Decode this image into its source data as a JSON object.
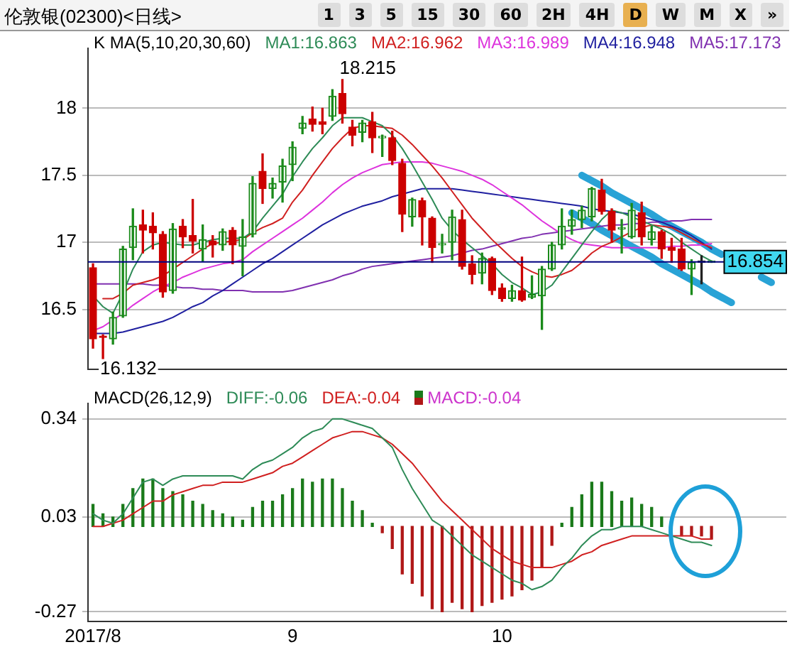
{
  "chart_data": [
    {
      "type": "candlestick",
      "title": "伦敦银(02300)<日线>",
      "annotations": [
        "1",
        "3",
        "5",
        "15",
        "30",
        "60",
        "2H",
        "4H",
        "D",
        "W",
        "M",
        "X",
        "»"
      ],
      "value_labels": [
        null,
        "16.132",
        null,
        null,
        null,
        null,
        null,
        null,
        null,
        null,
        null,
        null,
        null,
        null,
        null,
        null,
        null,
        null,
        null,
        null,
        null,
        null,
        null,
        null,
        null,
        "18.215",
        null,
        null,
        null,
        null,
        null,
        null,
        null,
        null,
        null,
        null,
        null,
        null,
        null,
        null,
        null,
        null,
        null,
        null,
        null,
        null,
        null,
        null,
        null,
        null,
        null,
        null,
        null,
        null,
        null,
        null,
        null,
        null,
        null,
        null,
        null,
        null,
        null,
        null,
        null,
        null,
        null,
        null,
        null,
        null
      ],
      "legend_title": "K  MA(5,10,20,30,60)",
      "legend": "top",
      "grid": "y",
      "tick_labels": "y",
      "categories": [
        "2017/8",
        null,
        null,
        null,
        null,
        null,
        null,
        null,
        null,
        null,
        null,
        null,
        null,
        null,
        null,
        null,
        null,
        null,
        null,
        null,
        "9",
        null,
        null,
        null,
        null,
        null,
        null,
        null,
        null,
        null,
        null,
        null,
        null,
        null,
        null,
        null,
        null,
        null,
        null,
        null,
        null,
        "10",
        null,
        null,
        null,
        null,
        null,
        null,
        null,
        null,
        null,
        null,
        null,
        null,
        null,
        null,
        null,
        null,
        null,
        null,
        null,
        null,
        null,
        null,
        null,
        null,
        null,
        null,
        null,
        null
      ],
      "ylim": [
        16.05,
        18.45
      ],
      "yticks": [
        16.5,
        17,
        17.5,
        18
      ],
      "ohlc": [
        [
          16.81,
          16.84,
          16.21,
          16.28
        ],
        [
          16.3,
          16.31,
          16.132,
          16.29
        ],
        [
          16.28,
          16.48,
          16.24,
          16.44
        ],
        [
          16.45,
          16.97,
          16.44,
          16.95
        ],
        [
          16.96,
          17.25,
          16.87,
          17.12
        ],
        [
          17.13,
          17.24,
          16.92,
          17.09
        ],
        [
          17.12,
          17.22,
          16.95,
          17.07
        ],
        [
          17.06,
          17.08,
          16.59,
          16.63
        ],
        [
          16.64,
          17.14,
          16.62,
          17.1
        ],
        [
          17.12,
          17.17,
          16.96,
          17.04
        ],
        [
          17.05,
          17.32,
          16.92,
          17.01
        ],
        [
          16.95,
          17.13,
          16.86,
          17.02
        ],
        [
          17.01,
          17.05,
          16.89,
          16.98
        ],
        [
          16.98,
          17.1,
          16.94,
          17.08
        ],
        [
          17.09,
          17.11,
          16.84,
          16.98
        ],
        [
          16.97,
          17.17,
          16.75,
          17.04
        ],
        [
          17.06,
          17.49,
          17.04,
          17.44
        ],
        [
          17.53,
          17.66,
          17.29,
          17.4
        ],
        [
          17.4,
          17.48,
          17.33,
          17.44
        ],
        [
          17.45,
          17.62,
          17.3,
          17.57
        ],
        [
          17.58,
          17.75,
          17.46,
          17.71
        ],
        [
          17.85,
          17.94,
          17.81,
          17.89
        ],
        [
          17.92,
          18.01,
          17.83,
          17.88
        ],
        [
          17.9,
          18.0,
          17.81,
          17.88
        ],
        [
          17.94,
          18.14,
          17.91,
          18.09
        ],
        [
          18.11,
          18.215,
          17.89,
          17.96
        ],
        [
          17.86,
          17.91,
          17.72,
          17.8
        ],
        [
          17.82,
          17.91,
          17.75,
          17.89
        ],
        [
          17.9,
          17.97,
          17.67,
          17.78
        ],
        [
          17.78,
          17.8,
          17.64,
          17.79
        ],
        [
          17.78,
          17.83,
          17.58,
          17.61
        ],
        [
          17.59,
          17.62,
          17.08,
          17.21
        ],
        [
          17.19,
          17.33,
          17.12,
          17.32
        ],
        [
          17.31,
          17.33,
          16.98,
          17.19
        ],
        [
          17.18,
          17.19,
          16.85,
          16.96
        ],
        [
          16.98,
          17.06,
          16.92,
          16.99
        ],
        [
          17.0,
          17.24,
          16.87,
          17.19
        ],
        [
          17.17,
          17.24,
          16.8,
          16.82
        ],
        [
          16.84,
          16.9,
          16.69,
          16.76
        ],
        [
          16.77,
          16.92,
          16.69,
          16.88
        ],
        [
          16.88,
          16.89,
          16.61,
          16.64
        ],
        [
          16.66,
          16.69,
          16.56,
          16.58
        ],
        [
          16.58,
          16.68,
          16.56,
          16.64
        ],
        [
          16.64,
          16.89,
          16.56,
          16.57
        ],
        [
          16.59,
          16.75,
          16.58,
          16.61
        ],
        [
          16.6,
          16.82,
          16.35,
          16.8
        ],
        [
          16.8,
          17.0,
          16.79,
          16.98
        ],
        [
          16.98,
          17.25,
          16.95,
          17.12
        ],
        [
          17.12,
          17.24,
          17.06,
          17.17
        ],
        [
          17.17,
          17.27,
          17.11,
          17.24
        ],
        [
          17.19,
          17.41,
          17.16,
          17.4
        ],
        [
          17.39,
          17.47,
          17.21,
          17.23
        ],
        [
          17.23,
          17.25,
          17.0,
          17.09
        ],
        [
          17.1,
          17.17,
          16.92,
          17.11
        ],
        [
          17.04,
          17.29,
          17.03,
          17.24
        ],
        [
          17.22,
          17.3,
          16.98,
          17.04
        ],
        [
          17.02,
          17.12,
          16.98,
          17.08
        ],
        [
          17.08,
          17.09,
          16.88,
          16.95
        ],
        [
          16.96,
          17.03,
          16.85,
          16.94
        ],
        [
          16.95,
          17.03,
          16.79,
          16.8
        ],
        [
          16.8,
          16.87,
          16.61,
          16.85
        ],
        [
          16.86,
          16.9,
          16.69,
          16.85
        ],
        [
          16.85,
          16.86,
          16.85,
          16.854
        ],
        null,
        null,
        null,
        null,
        null,
        null,
        null
      ],
      "colors": [
        "#cc0000",
        "#cc0000",
        "#1a8a1a",
        "#1a8a1a",
        "#1a8a1a",
        "#cc0000",
        "#cc0000",
        "#cc0000",
        "#1a8a1a",
        "#cc0000",
        "#cc0000",
        "#1a8a1a",
        "#cc0000",
        "#1a8a1a",
        "#cc0000",
        "#1a8a1a",
        "#1a8a1a",
        "#cc0000",
        "#1a8a1a",
        "#1a8a1a",
        "#1a8a1a",
        "#1a8a1a",
        "#cc0000",
        "#cc0000",
        "#1a8a1a",
        "#cc0000",
        "#cc0000",
        "#1a8a1a",
        "#cc0000",
        "#1a8a1a",
        "#cc0000",
        "#cc0000",
        "#1a8a1a",
        "#cc0000",
        "#cc0000",
        "#1a8a1a",
        "#1a8a1a",
        "#cc0000",
        "#cc0000",
        "#1a8a1a",
        "#cc0000",
        "#cc0000",
        "#1a8a1a",
        "#cc0000",
        "#1a8a1a",
        "#1a8a1a",
        "#1a8a1a",
        "#1a8a1a",
        "#1a8a1a",
        "#1a8a1a",
        "#1a8a1a",
        "#cc0000",
        "#cc0000",
        "#1a8a1a",
        "#1a8a1a",
        "#cc0000",
        "#1a8a1a",
        "#cc0000",
        "#cc0000",
        "#cc0000",
        "#1a8a1a",
        "#222222",
        "#1a8a1a",
        null,
        null,
        null,
        null,
        null,
        null,
        null
      ],
      "ref_lines": [
        {
          "axis": "y",
          "value": 16.854,
          "label": "16.854",
          "color": "#000080"
        }
      ],
      "series": [
        {
          "name": "MA1:16.863",
          "type": "line",
          "color": "#2e8b57",
          "values": [
            16.6,
            16.52,
            16.47,
            16.62,
            16.8,
            16.93,
            16.98,
            17.0,
            16.99,
            16.98,
            16.98,
            17.0,
            17.02,
            17.03,
            17.03,
            17.03,
            17.08,
            17.18,
            17.27,
            17.36,
            17.49,
            17.6,
            17.7,
            17.78,
            17.87,
            17.93,
            17.93,
            17.93,
            17.9,
            17.87,
            17.8,
            17.7,
            17.58,
            17.45,
            17.32,
            17.18,
            17.09,
            17.02,
            16.96,
            16.9,
            16.84,
            16.76,
            16.7,
            16.66,
            16.61,
            16.63,
            16.68,
            16.78,
            16.88,
            16.98,
            17.08,
            17.17,
            17.24,
            17.22,
            17.19,
            17.16,
            17.13,
            17.1,
            17.06,
            17.0,
            16.95,
            16.9,
            16.86,
            null,
            null,
            null,
            null,
            null,
            null,
            null
          ]
        },
        {
          "name": "MA2:16.962",
          "type": "line",
          "color": "#d02020",
          "values": [
            null,
            16.58,
            16.58,
            16.62,
            16.68,
            16.7,
            16.72,
            16.75,
            16.8,
            16.85,
            16.9,
            16.95,
            16.99,
            17.0,
            17.01,
            17.02,
            17.07,
            17.11,
            17.14,
            17.18,
            17.3,
            17.39,
            17.5,
            17.6,
            17.7,
            17.78,
            17.85,
            17.87,
            17.87,
            17.86,
            17.85,
            17.8,
            17.73,
            17.65,
            17.57,
            17.48,
            17.38,
            17.28,
            17.18,
            17.1,
            17.02,
            16.95,
            16.88,
            16.82,
            16.78,
            16.75,
            16.74,
            16.76,
            16.79,
            16.85,
            16.92,
            16.97,
            17.0,
            17.04,
            17.08,
            17.11,
            17.13,
            17.12,
            17.11,
            17.07,
            17.03,
            16.99,
            16.96,
            null,
            null,
            null,
            null,
            null,
            null,
            null
          ]
        },
        {
          "name": "MA3:16.989",
          "type": "line",
          "color": "#dd33dd",
          "values": [
            16.34,
            16.37,
            16.42,
            16.47,
            16.53,
            16.58,
            16.63,
            16.67,
            16.7,
            16.74,
            16.77,
            16.8,
            16.82,
            16.84,
            16.85,
            16.87,
            16.93,
            16.98,
            17.03,
            17.08,
            17.13,
            17.18,
            17.24,
            17.3,
            17.37,
            17.43,
            17.48,
            17.52,
            17.55,
            17.58,
            17.59,
            17.6,
            17.6,
            17.6,
            17.59,
            17.57,
            17.55,
            17.53,
            17.5,
            17.47,
            17.43,
            17.38,
            17.33,
            17.28,
            17.22,
            17.16,
            17.11,
            17.06,
            17.02,
            16.99,
            16.98,
            16.97,
            16.96,
            16.96,
            16.96,
            16.96,
            16.96,
            16.96,
            16.97,
            16.97,
            16.98,
            16.98,
            16.99,
            null,
            null,
            null,
            null,
            null,
            null,
            null
          ]
        },
        {
          "name": "MA4:16.948",
          "type": "line",
          "color": "#2020a0",
          "values": [
            16.32,
            16.32,
            16.32,
            16.33,
            16.35,
            16.37,
            16.39,
            16.41,
            16.44,
            16.48,
            16.52,
            16.55,
            16.6,
            16.64,
            16.69,
            16.74,
            16.79,
            16.84,
            16.88,
            16.93,
            16.98,
            17.03,
            17.08,
            17.13,
            17.17,
            17.21,
            17.24,
            17.27,
            17.29,
            17.31,
            17.34,
            17.36,
            17.38,
            17.4,
            17.4,
            17.4,
            17.4,
            17.39,
            17.38,
            17.37,
            17.36,
            17.35,
            17.34,
            17.33,
            17.32,
            17.31,
            17.3,
            17.29,
            17.28,
            17.27,
            17.25,
            17.24,
            17.23,
            17.22,
            17.21,
            17.19,
            17.17,
            17.15,
            17.12,
            17.09,
            17.05,
            17.0,
            16.95,
            null,
            null,
            null,
            null,
            null,
            null,
            null
          ]
        },
        {
          "name": "MA5:17.173",
          "type": "line",
          "color": "#8030b0",
          "values": [
            16.69,
            16.69,
            16.69,
            16.69,
            16.69,
            16.69,
            16.68,
            16.68,
            16.67,
            16.66,
            16.66,
            16.65,
            16.65,
            16.64,
            16.64,
            16.64,
            16.63,
            16.63,
            16.63,
            16.63,
            16.64,
            16.66,
            16.68,
            16.7,
            16.72,
            16.75,
            16.77,
            16.8,
            16.82,
            16.83,
            16.84,
            16.85,
            16.86,
            16.87,
            16.88,
            16.89,
            16.9,
            16.92,
            16.94,
            16.95,
            16.97,
            16.99,
            17.01,
            17.03,
            17.04,
            17.06,
            17.07,
            17.08,
            17.09,
            17.1,
            17.11,
            17.12,
            17.13,
            17.13,
            17.14,
            17.14,
            17.15,
            17.15,
            17.16,
            17.16,
            17.17,
            17.17,
            17.17,
            null,
            null,
            null,
            null,
            null,
            null,
            null
          ]
        },
        {
          "type": "line",
          "color": "#29a3d6",
          "values": [
            null,
            null,
            null,
            null,
            null,
            null,
            null,
            null,
            null,
            null,
            null,
            null,
            null,
            null,
            null,
            null,
            null,
            null,
            null,
            null,
            null,
            null,
            null,
            null,
            null,
            null,
            null,
            null,
            null,
            null,
            null,
            null,
            null,
            null,
            null,
            null,
            null,
            null,
            null,
            null,
            null,
            null,
            null,
            null,
            null,
            null,
            null,
            null,
            null,
            17.5,
            17.46,
            17.42,
            17.37,
            17.33,
            17.29,
            17.25,
            17.21,
            17.16,
            17.12,
            17.08,
            17.04,
            17.0,
            16.95,
            16.91,
            null,
            null,
            null,
            16.74,
            16.7,
            null
          ]
        },
        {
          "type": "line",
          "color": "#29a3d6",
          "values": [
            null,
            null,
            null,
            null,
            null,
            null,
            null,
            null,
            null,
            null,
            null,
            null,
            null,
            null,
            null,
            null,
            null,
            null,
            null,
            null,
            null,
            null,
            null,
            null,
            null,
            null,
            null,
            null,
            null,
            null,
            null,
            null,
            null,
            null,
            null,
            null,
            null,
            null,
            null,
            null,
            null,
            null,
            null,
            null,
            null,
            null,
            null,
            null,
            17.22,
            17.18,
            17.14,
            17.09,
            17.05,
            17.01,
            16.97,
            16.93,
            16.89,
            16.84,
            16.8,
            16.76,
            16.72,
            16.68,
            16.63,
            16.59,
            16.55,
            null,
            null,
            null,
            null,
            null
          ]
        }
      ]
    },
    {
      "type": "bar",
      "legend_title": "MACD(26,12,9)",
      "legend": "top left",
      "grid": "y",
      "categories": [
        "2017/8",
        null,
        null,
        null,
        null,
        null,
        null,
        null,
        null,
        null,
        null,
        null,
        null,
        null,
        null,
        null,
        null,
        null,
        null,
        null,
        "9",
        null,
        null,
        null,
        null,
        null,
        null,
        null,
        null,
        null,
        null,
        null,
        null,
        null,
        null,
        null,
        null,
        null,
        null,
        null,
        null,
        "10",
        null,
        null,
        null,
        null,
        null,
        null,
        null,
        null,
        null,
        null,
        null,
        null,
        null,
        null,
        null,
        null,
        null,
        null,
        null,
        null,
        null,
        null,
        null,
        null,
        null,
        null,
        null,
        null
      ],
      "ylim": [
        -0.3,
        0.39
      ],
      "yticks": [
        0.34,
        0.03,
        -0.27
      ],
      "series": [
        {
          "name": "DIFF:-0.06",
          "type": "line",
          "color": "#2e8b57",
          "values": [
            0.04,
            0.02,
            0.01,
            0.04,
            0.09,
            0.14,
            0.15,
            0.13,
            0.15,
            0.16,
            0.16,
            0.16,
            0.16,
            0.16,
            0.16,
            0.15,
            0.18,
            0.2,
            0.21,
            0.23,
            0.25,
            0.28,
            0.3,
            0.31,
            0.34,
            0.34,
            0.33,
            0.32,
            0.31,
            0.28,
            0.25,
            0.18,
            0.12,
            0.07,
            0.02,
            0.0,
            -0.03,
            -0.06,
            -0.09,
            -0.11,
            -0.13,
            -0.15,
            -0.17,
            -0.18,
            -0.2,
            -0.19,
            -0.17,
            -0.13,
            -0.1,
            -0.06,
            -0.03,
            -0.01,
            -0.01,
            0.0,
            0.0,
            0.0,
            -0.01,
            -0.02,
            -0.03,
            -0.04,
            -0.05,
            -0.05,
            -0.06,
            null,
            null,
            null,
            null,
            null,
            null,
            null
          ]
        },
        {
          "name": "DEA:-0.04",
          "type": "line",
          "color": "#d02020",
          "values": [
            0.0,
            0.0,
            0.01,
            0.02,
            0.04,
            0.06,
            0.08,
            0.08,
            0.1,
            0.11,
            0.12,
            0.13,
            0.13,
            0.14,
            0.14,
            0.14,
            0.15,
            0.16,
            0.17,
            0.19,
            0.2,
            0.22,
            0.24,
            0.26,
            0.28,
            0.29,
            0.3,
            0.3,
            0.29,
            0.28,
            0.26,
            0.23,
            0.2,
            0.16,
            0.12,
            0.08,
            0.05,
            0.02,
            -0.01,
            -0.04,
            -0.07,
            -0.09,
            -0.11,
            -0.12,
            -0.13,
            -0.13,
            -0.13,
            -0.12,
            -0.11,
            -0.09,
            -0.08,
            -0.06,
            -0.05,
            -0.04,
            -0.03,
            -0.03,
            -0.03,
            -0.03,
            -0.03,
            -0.03,
            -0.03,
            -0.04,
            -0.04,
            null,
            null,
            null,
            null,
            null,
            null,
            null
          ]
        },
        {
          "name": "MACD:-0.04",
          "type": "bar",
          "values": [
            0.07,
            0.04,
            0.03,
            0.07,
            0.12,
            0.15,
            0.15,
            0.12,
            0.11,
            0.1,
            0.08,
            0.07,
            0.05,
            0.04,
            0.03,
            0.02,
            0.06,
            0.08,
            0.08,
            0.1,
            0.12,
            0.15,
            0.14,
            0.15,
            0.15,
            0.12,
            0.08,
            0.05,
            0.01,
            -0.02,
            -0.07,
            -0.15,
            -0.18,
            -0.22,
            -0.26,
            -0.27,
            -0.24,
            -0.26,
            -0.27,
            -0.25,
            -0.24,
            -0.23,
            -0.22,
            -0.2,
            -0.17,
            -0.13,
            -0.06,
            0.01,
            0.06,
            0.1,
            0.14,
            0.14,
            0.11,
            0.08,
            0.09,
            0.07,
            0.06,
            0.03,
            null,
            -0.03,
            -0.03,
            -0.03,
            -0.04,
            null,
            null,
            null,
            null,
            null,
            null,
            null
          ],
          "colors": [
            "#1a7a1a",
            "#1a7a1a",
            "#1a7a1a",
            "#1a7a1a",
            "#1a7a1a",
            "#1a7a1a",
            "#1a7a1a",
            "#1a7a1a",
            "#1a7a1a",
            "#1a7a1a",
            "#1a7a1a",
            "#1a7a1a",
            "#1a7a1a",
            "#1a7a1a",
            "#1a7a1a",
            "#1a7a1a",
            "#1a7a1a",
            "#1a7a1a",
            "#1a7a1a",
            "#1a7a1a",
            "#1a7a1a",
            "#1a7a1a",
            "#1a7a1a",
            "#1a7a1a",
            "#1a7a1a",
            "#1a7a1a",
            "#1a7a1a",
            "#1a7a1a",
            "#1a7a1a",
            "#b01818",
            "#b01818",
            "#b01818",
            "#b01818",
            "#b01818",
            "#b01818",
            "#b01818",
            "#b01818",
            "#b01818",
            "#b01818",
            "#b01818",
            "#b01818",
            "#b01818",
            "#b01818",
            "#b01818",
            "#b01818",
            "#b01818",
            "#b01818",
            "#1a7a1a",
            "#1a7a1a",
            "#1a7a1a",
            "#1a7a1a",
            "#1a7a1a",
            "#1a7a1a",
            "#1a7a1a",
            "#1a7a1a",
            "#1a7a1a",
            "#1a7a1a",
            "#1a7a1a",
            "#1a7a1a",
            "#b01818",
            "#b01818",
            "#b01818",
            "#b01818",
            null,
            null,
            null,
            null,
            null,
            null,
            null
          ]
        }
      ]
    }
  ]
}
